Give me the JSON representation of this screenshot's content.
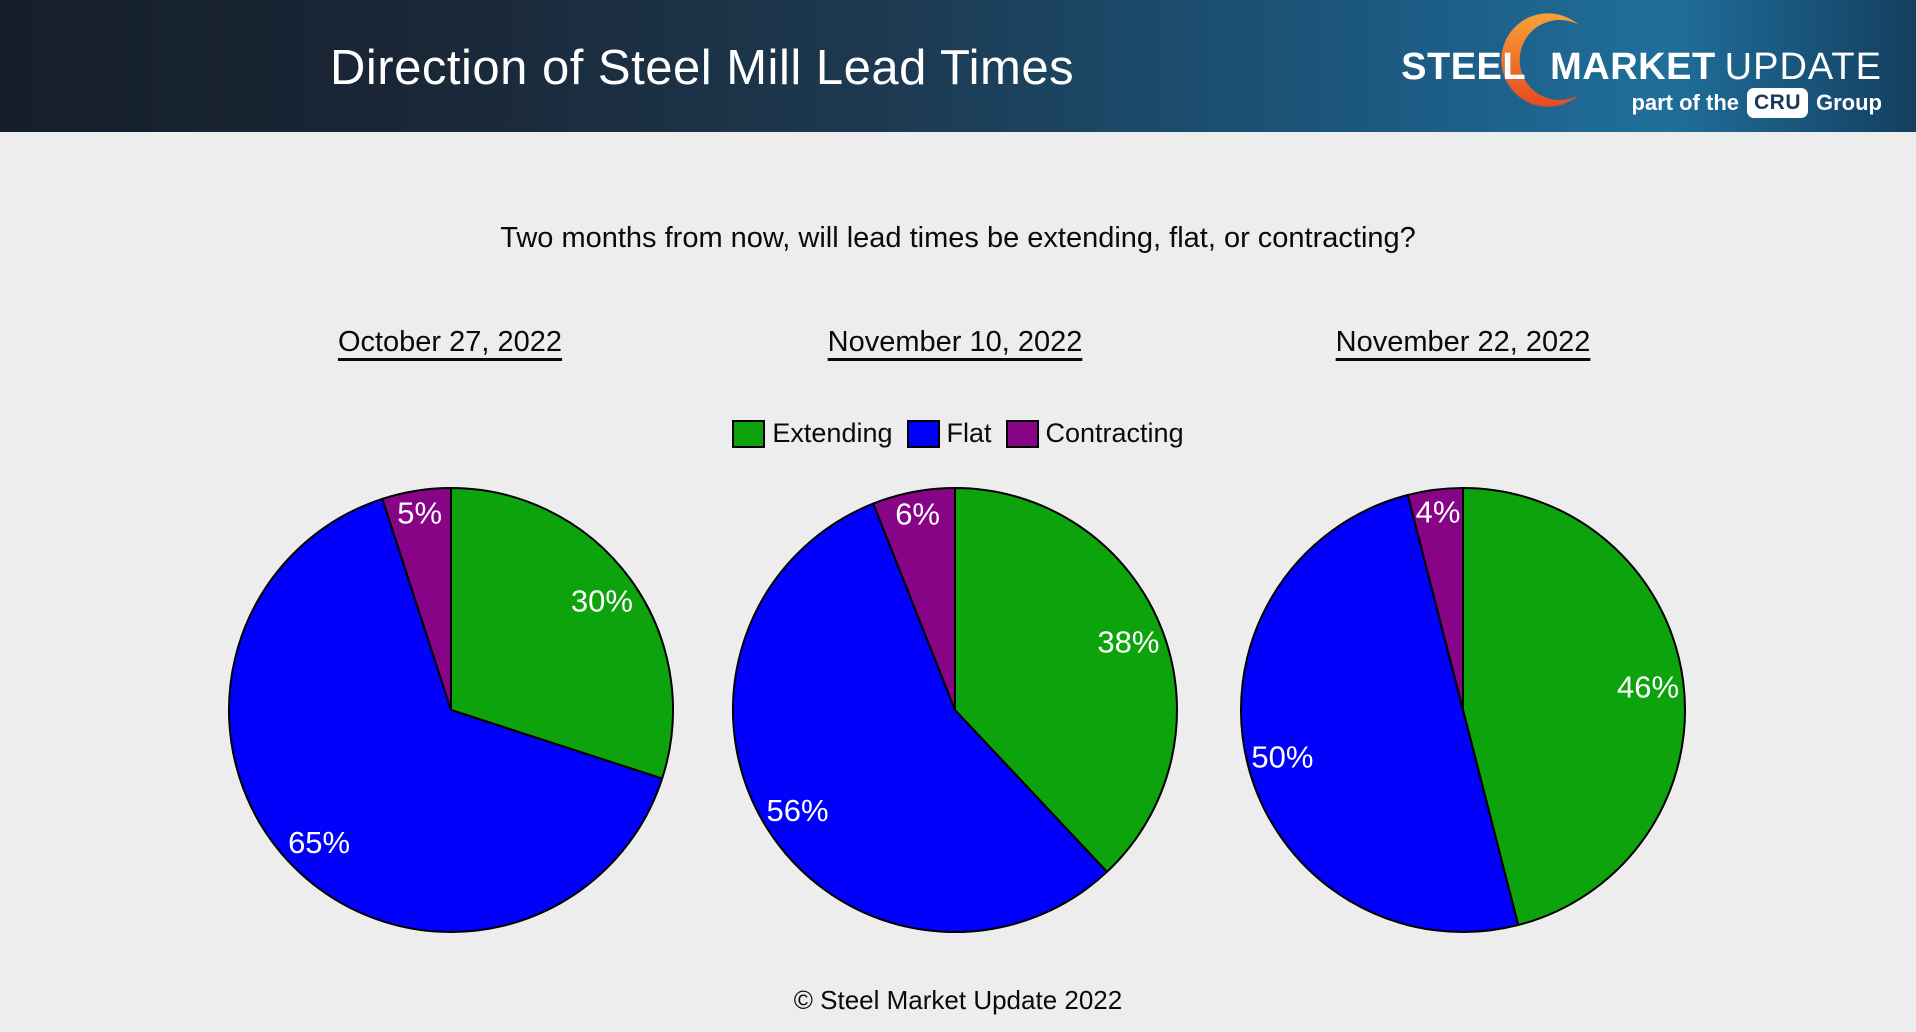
{
  "header": {
    "title": "Direction of Steel Mill Lead Times",
    "logo": {
      "steel": "STEEL",
      "market": "MARKET",
      "update": "UPDATE",
      "tagline_prefix": "part of the",
      "cru": "CRU",
      "tagline_suffix": "Group"
    }
  },
  "subtitle": "Two months from now, will lead times be extending, flat, or contracting?",
  "legend": {
    "items": [
      {
        "label": "Extending",
        "color": "#0ca30c"
      },
      {
        "label": "Flat",
        "color": "#0000fb"
      },
      {
        "label": "Contracting",
        "color": "#860485"
      }
    ]
  },
  "chart_data": [
    {
      "type": "pie",
      "title": "October 27, 2022",
      "categories": [
        "Extending",
        "Flat",
        "Contracting"
      ],
      "values": [
        30,
        65,
        5
      ],
      "value_labels": [
        "30%",
        "65%",
        "5%"
      ],
      "colors": [
        "#0ca30c",
        "#0000fb",
        "#860485"
      ],
      "start_angle": "top",
      "direction": "clockwise",
      "label_color": "#ffffff",
      "slice_border_color": "#000000"
    },
    {
      "type": "pie",
      "title": "November 10, 2022",
      "categories": [
        "Extending",
        "Flat",
        "Contracting"
      ],
      "values": [
        38,
        56,
        6
      ],
      "value_labels": [
        "38%",
        "56%",
        "6%"
      ],
      "colors": [
        "#0ca30c",
        "#0000fb",
        "#860485"
      ],
      "start_angle": "top",
      "direction": "clockwise",
      "label_color": "#ffffff",
      "slice_border_color": "#000000"
    },
    {
      "type": "pie",
      "title": "November 22, 2022",
      "categories": [
        "Extending",
        "Flat",
        "Contracting"
      ],
      "values": [
        46,
        50,
        4
      ],
      "value_labels": [
        "46%",
        "50%",
        "4%"
      ],
      "colors": [
        "#0ca30c",
        "#0000fb",
        "#860485"
      ],
      "start_angle": "top",
      "direction": "clockwise",
      "label_color": "#ffffff",
      "slice_border_color": "#000000"
    }
  ],
  "footer": "© Steel Market Update 2022",
  "colors": {
    "background": "#ededed",
    "header_gradient_left": "#151e2a",
    "header_gradient_right": "#1f6f9b",
    "header_gradient_edge": "#143f60",
    "title_text": "#ffffff",
    "logo_orange_top": "#f7a23b",
    "logo_orange_bottom": "#e54a22",
    "cru_badge_bg": "#ffffff",
    "cru_badge_text": "#173a5a",
    "extending": "#0ca30c",
    "flat": "#0000fb",
    "contracting": "#860485",
    "pie_label": "#ffffff",
    "body_text": "#0a0a0a"
  }
}
